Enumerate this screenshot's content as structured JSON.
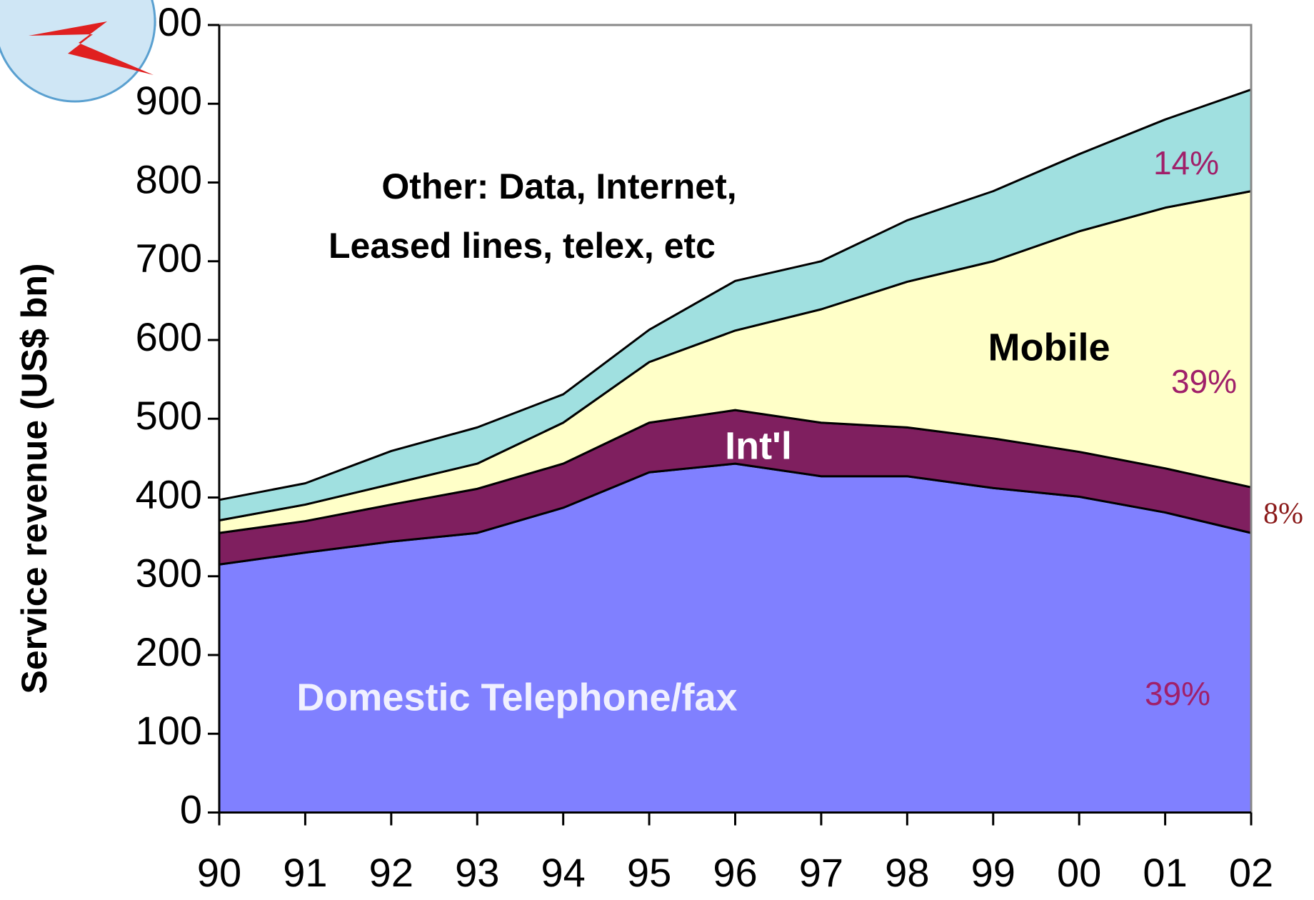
{
  "chart_data": {
    "type": "stacked-area",
    "y_label": "Service revenue (US$ bn)",
    "categories": [
      "90",
      "91",
      "92",
      "93",
      "94",
      "95",
      "96",
      "97",
      "98",
      "99",
      "00",
      "01",
      "02"
    ],
    "series": [
      {
        "name": "Domestic Telephone/fax",
        "color": "#8080ff",
        "values": [
          315,
          330,
          344,
          355,
          387,
          432,
          443,
          427,
          427,
          412,
          401,
          381,
          355
        ]
      },
      {
        "name": "Int'l",
        "color": "#7f1f5f",
        "values": [
          40,
          40,
          47,
          56,
          56,
          63,
          68,
          68,
          62,
          63,
          57,
          56,
          58
        ]
      },
      {
        "name": "Mobile",
        "color": "#ffffc8",
        "values": [
          16,
          21,
          26,
          32,
          52,
          77,
          101,
          144,
          185,
          225,
          280,
          331,
          376
        ]
      },
      {
        "name": "Other: Data, Internet, Leased lines, telex, etc",
        "color": "#a0e0e0",
        "values": [
          26,
          27,
          42,
          46,
          36,
          41,
          63,
          61,
          78,
          89,
          98,
          112,
          129
        ]
      }
    ],
    "ylim": [
      0,
      1000
    ],
    "yticks": [
      0,
      100,
      200,
      300,
      400,
      500,
      600,
      700,
      800,
      900,
      1000
    ],
    "annotations": [
      {
        "text": "Other: Data, Internet,"
      },
      {
        "text": "Leased lines, telex, etc"
      },
      {
        "text": "Mobile"
      },
      {
        "text": "Int'l"
      },
      {
        "text": "Domestic Telephone/fax"
      },
      {
        "text": "14%"
      },
      {
        "text": "39%"
      },
      {
        "text": "8%"
      },
      {
        "text": "39%"
      }
    ]
  }
}
